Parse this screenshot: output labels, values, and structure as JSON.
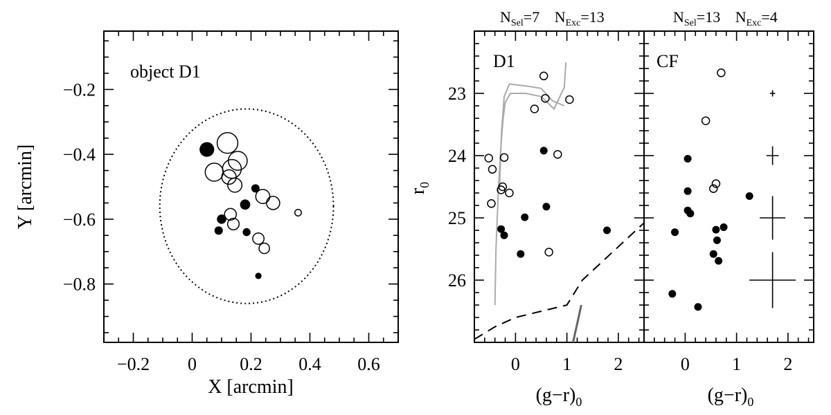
{
  "chart_data": [
    {
      "type": "scatter",
      "panel": "left",
      "title": "",
      "annotation": "object D1",
      "xlabel": "X [arcmin]",
      "ylabel": "Y [arcmin]",
      "xlim": [
        -0.3,
        0.7
      ],
      "ylim": [
        -0.98,
        -0.02
      ],
      "xticks": [
        -0.2,
        0,
        0.2,
        0.4,
        0.6
      ],
      "xtick_labels": [
        "−0.2",
        "0",
        "0.2",
        "0.4",
        "0.6"
      ],
      "yticks": [
        -0.2,
        -0.4,
        -0.6,
        -0.8
      ],
      "ytick_labels": [
        "−0.2",
        "−0.4",
        "−0.6",
        "−0.8"
      ],
      "ellipse": {
        "center": [
          0.185,
          -0.56
        ],
        "rx": 0.295,
        "ry": 0.3,
        "style": "dotted"
      },
      "series": [
        {
          "name": "selected",
          "marker": "filled-circle",
          "points": [
            {
              "x": 0.05,
              "y": -0.385,
              "r0": 23.92
            },
            {
              "x": 0.18,
              "y": -0.555,
              "r0": 24.82
            },
            {
              "x": 0.1,
              "y": -0.6,
              "r0": 24.99
            },
            {
              "x": 0.09,
              "y": -0.635,
              "r0": 25.18
            },
            {
              "x": 0.185,
              "y": -0.64,
              "r0": 25.28
            },
            {
              "x": 0.225,
              "y": -0.775,
              "r0": 25.58
            },
            {
              "x": 0.215,
              "y": -0.505,
              "r0": 25.2
            }
          ]
        },
        {
          "name": "excluded",
          "marker": "open-circle",
          "points": [
            {
              "x": 0.12,
              "y": -0.365,
              "r0": 22.72
            },
            {
              "x": 0.155,
              "y": -0.42,
              "r0": 23.08
            },
            {
              "x": 0.135,
              "y": -0.445,
              "r0": 23.1
            },
            {
              "x": 0.075,
              "y": -0.455,
              "r0": 23.25
            },
            {
              "x": 0.125,
              "y": -0.47,
              "r0": 23.98
            },
            {
              "x": 0.145,
              "y": -0.495,
              "r0": 24.03
            },
            {
              "x": 0.24,
              "y": -0.53,
              "r0": 24.04
            },
            {
              "x": 0.275,
              "y": -0.55,
              "r0": 24.22
            },
            {
              "x": 0.13,
              "y": -0.585,
              "r0": 24.5
            },
            {
              "x": 0.14,
              "y": -0.615,
              "r0": 24.55
            },
            {
              "x": 0.225,
              "y": -0.66,
              "r0": 24.6
            },
            {
              "x": 0.245,
              "y": -0.69,
              "r0": 24.77
            },
            {
              "x": 0.36,
              "y": -0.58,
              "r0": 25.55
            }
          ]
        }
      ]
    },
    {
      "type": "scatter",
      "panel": "middle",
      "annotation": "D1",
      "header": "N_Sel=7   N_Exc=13",
      "n_sel": "7",
      "n_exc": "13",
      "xlabel": "(g−r)₀",
      "ylabel": "r₀",
      "xlim": [
        -0.8,
        2.5
      ],
      "ylim": [
        27.0,
        22.0
      ],
      "xticks": [
        0,
        1,
        2
      ],
      "xtick_labels": [
        "0",
        "1",
        "2"
      ],
      "yticks": [
        23,
        24,
        25,
        26
      ],
      "ytick_labels": [
        "23",
        "24",
        "25",
        "26"
      ],
      "series": [
        {
          "name": "selected",
          "marker": "filled-circle",
          "points": [
            {
              "x": 0.55,
              "y": 23.92
            },
            {
              "x": 0.6,
              "y": 24.82
            },
            {
              "x": 0.18,
              "y": 24.99
            },
            {
              "x": -0.28,
              "y": 25.18
            },
            {
              "x": -0.22,
              "y": 25.28
            },
            {
              "x": 0.1,
              "y": 25.58
            },
            {
              "x": 1.78,
              "y": 25.2
            }
          ]
        },
        {
          "name": "excluded",
          "marker": "open-circle",
          "points": [
            {
              "x": 0.55,
              "y": 22.72
            },
            {
              "x": 0.58,
              "y": 23.08
            },
            {
              "x": 1.05,
              "y": 23.1
            },
            {
              "x": 0.37,
              "y": 23.25
            },
            {
              "x": 0.82,
              "y": 23.98
            },
            {
              "x": -0.22,
              "y": 24.03
            },
            {
              "x": -0.52,
              "y": 24.04
            },
            {
              "x": -0.45,
              "y": 24.22
            },
            {
              "x": -0.25,
              "y": 24.5
            },
            {
              "x": -0.28,
              "y": 24.55
            },
            {
              "x": -0.12,
              "y": 24.6
            },
            {
              "x": -0.47,
              "y": 24.77
            },
            {
              "x": 0.65,
              "y": 25.55
            }
          ]
        },
        {
          "name": "isochrone-lower",
          "style": "gray-line",
          "points": [
            {
              "x": -0.4,
              "y": 26.4
            },
            {
              "x": -0.38,
              "y": 25.5
            },
            {
              "x": -0.33,
              "y": 24.5
            },
            {
              "x": -0.28,
              "y": 23.8
            },
            {
              "x": -0.24,
              "y": 23.4
            },
            {
              "x": -0.2,
              "y": 23.15
            },
            {
              "x": -0.1,
              "y": 23.0
            },
            {
              "x": 0.2,
              "y": 23.0
            },
            {
              "x": 0.5,
              "y": 23.05
            },
            {
              "x": 0.75,
              "y": 23.25
            },
            {
              "x": 0.95,
              "y": 22.9
            },
            {
              "x": 0.98,
              "y": 22.5
            }
          ]
        },
        {
          "name": "isochrone-upper",
          "style": "gray-line",
          "points": [
            {
              "x": -0.31,
              "y": 24.5
            },
            {
              "x": -0.27,
              "y": 23.6
            },
            {
              "x": -0.22,
              "y": 23.05
            },
            {
              "x": -0.12,
              "y": 22.85
            },
            {
              "x": 0.2,
              "y": 22.88
            },
            {
              "x": 0.5,
              "y": 22.92
            },
            {
              "x": 0.72,
              "y": 23.12
            },
            {
              "x": 0.95,
              "y": 23.2
            }
          ]
        },
        {
          "name": "completeness-limit",
          "style": "dashed",
          "points": [
            {
              "x": -0.8,
              "y": 26.95
            },
            {
              "x": -0.4,
              "y": 26.75
            },
            {
              "x": 0.0,
              "y": 26.6
            },
            {
              "x": 0.5,
              "y": 26.5
            },
            {
              "x": 1.0,
              "y": 26.4
            },
            {
              "x": 1.3,
              "y": 26.0
            },
            {
              "x": 2.5,
              "y": 25.08
            }
          ]
        },
        {
          "name": "rgb-fiducial",
          "style": "dark-gray-line",
          "points": [
            {
              "x": 1.12,
              "y": 27.0
            },
            {
              "x": 1.2,
              "y": 26.7
            },
            {
              "x": 1.28,
              "y": 26.4
            }
          ]
        }
      ]
    },
    {
      "type": "scatter",
      "panel": "right",
      "annotation": "CF",
      "header": "N_Sel=13   N_Exc=4",
      "n_sel": "13",
      "n_exc": "4",
      "xlabel": "(g−r)₀",
      "xlim": [
        -0.8,
        2.5
      ],
      "ylim": [
        27.0,
        22.0
      ],
      "xticks": [
        0,
        1,
        2
      ],
      "xtick_labels": [
        "0",
        "1",
        "2"
      ],
      "series": [
        {
          "name": "selected",
          "marker": "filled-circle",
          "points": [
            {
              "x": 0.05,
              "y": 24.05
            },
            {
              "x": 0.05,
              "y": 24.57
            },
            {
              "x": 1.25,
              "y": 24.65
            },
            {
              "x": 0.05,
              "y": 24.88
            },
            {
              "x": 0.1,
              "y": 24.93
            },
            {
              "x": 0.75,
              "y": 25.15
            },
            {
              "x": 0.6,
              "y": 25.19
            },
            {
              "x": -0.2,
              "y": 25.23
            },
            {
              "x": 0.62,
              "y": 25.36
            },
            {
              "x": 0.55,
              "y": 25.58
            },
            {
              "x": 0.65,
              "y": 25.69
            },
            {
              "x": -0.25,
              "y": 26.22
            },
            {
              "x": 0.25,
              "y": 26.43
            }
          ]
        },
        {
          "name": "excluded",
          "marker": "open-circle",
          "points": [
            {
              "x": 0.7,
              "y": 22.67
            },
            {
              "x": 0.4,
              "y": 23.44
            },
            {
              "x": 0.6,
              "y": 24.45
            },
            {
              "x": 0.55,
              "y": 24.53
            }
          ]
        },
        {
          "name": "error-bars",
          "marker": "cross",
          "points": [
            {
              "x": 1.7,
              "y": 23.0,
              "xerr": 0.05,
              "yerr": 0.05
            },
            {
              "x": 1.7,
              "y": 24.0,
              "xerr": 0.12,
              "yerr": 0.15
            },
            {
              "x": 1.7,
              "y": 25.0,
              "xerr": 0.25,
              "yerr": 0.35
            },
            {
              "x": 1.7,
              "y": 26.0,
              "xerr": 0.45,
              "yerr": 0.45
            }
          ]
        }
      ]
    }
  ]
}
